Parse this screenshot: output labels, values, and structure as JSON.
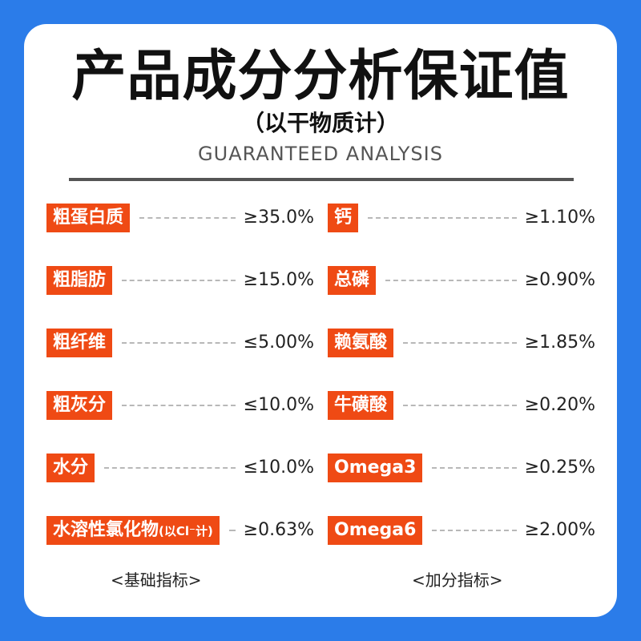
{
  "title": "产品成分分析保证值",
  "subtitle": "（以干物质计）",
  "subtitle_en": "GUARANTEED ANALYSIS",
  "basic": {
    "items": [
      {
        "name": "粗蛋白质",
        "value": "≥35.0%"
      },
      {
        "name": "粗脂肪",
        "value": "≥15.0%"
      },
      {
        "name": "粗纤维",
        "value": "≤5.00%"
      },
      {
        "name": "粗灰分",
        "value": "≤10.0%"
      },
      {
        "name": "水分",
        "value": "≤10.0%"
      },
      {
        "name": "水溶性氯化物",
        "note": "(以Cl⁻计)",
        "value": "≥0.63%"
      }
    ],
    "footer": "<基础指标>"
  },
  "extra": {
    "items": [
      {
        "name": "钙",
        "value": "≥1.10%"
      },
      {
        "name": "总磷",
        "value": "≥0.90%"
      },
      {
        "name": "赖氨酸",
        "value": "≥1.85%"
      },
      {
        "name": "牛磺酸",
        "value": "≥0.20%"
      },
      {
        "name": "Omega3",
        "value": "≥0.25%"
      },
      {
        "name": "Omega6",
        "value": "≥2.00%"
      }
    ],
    "footer": "<加分指标>"
  },
  "colors": {
    "background": "#2b7ce9",
    "label_bg": "#ef4a14",
    "card": "#ffffff"
  }
}
